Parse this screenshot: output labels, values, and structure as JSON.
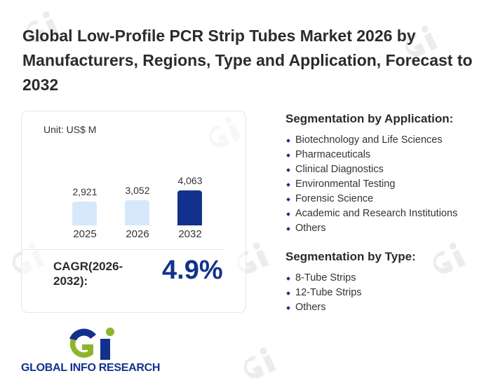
{
  "title": "Global Low-Profile PCR Strip Tubes Market 2026 by Manufacturers, Regions, Type and Application, Forecast to 2032",
  "chart_data": {
    "type": "bar",
    "unit_label": "Unit: US$ M",
    "categories": [
      "2025",
      "2026",
      "2032"
    ],
    "values": [
      2921,
      3052,
      4063
    ],
    "value_labels": [
      "2,921",
      "3,052",
      "4,063"
    ],
    "colors": [
      "#d6e8fb",
      "#d6e8fb",
      "#13318c"
    ]
  },
  "cagr": {
    "label": "CAGR(2026-2032):",
    "value": "4.9%"
  },
  "logo": {
    "text": "GLOBAL INFO RESEARCH"
  },
  "segmentation_application": {
    "heading": "Segmentation by Application:",
    "items": [
      "Biotechnology and Life Sciences",
      "Pharmaceuticals",
      "Clinical Diagnostics",
      "Environmental Testing",
      "Forensic Science",
      "Academic and Research Institutions",
      "Others"
    ]
  },
  "segmentation_type": {
    "heading": "Segmentation by Type:",
    "items": [
      "8-Tube Strips",
      "12-Tube Strips",
      "Others"
    ]
  }
}
